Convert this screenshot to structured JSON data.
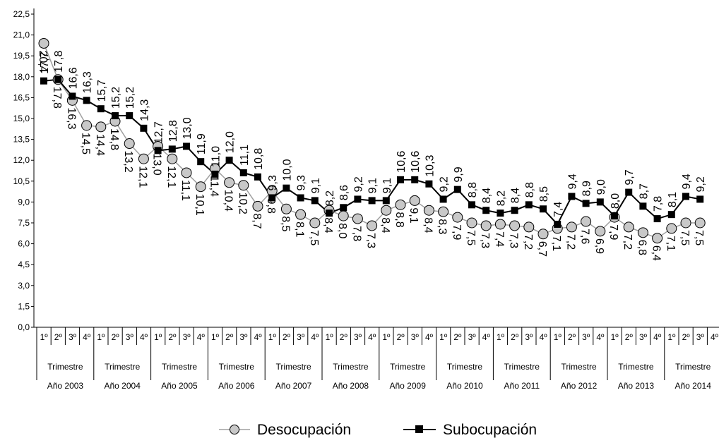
{
  "chart_data": {
    "type": "line",
    "title": "",
    "xlabel": "",
    "ylabel": "",
    "ylim": [
      0,
      22.5
    ],
    "y_ticks": [
      "0,0",
      "1,5",
      "3,0",
      "4,5",
      "6,0",
      "7,5",
      "9,0",
      "10,5",
      "12,0",
      "13,5",
      "15,0",
      "16,5",
      "18,0",
      "19,5",
      "21,0",
      "22,5"
    ],
    "grid": false,
    "legend_position": "bottom",
    "quarters": [
      "1º",
      "2º",
      "3º",
      "4º"
    ],
    "period_label": "Trimestre",
    "years": [
      "Año  2003",
      "Año 2004",
      "Año 2005",
      "Año 2006",
      "Año 2007",
      "Año 2008",
      "Año 2009",
      "Año 2010",
      "Año   2011",
      "Año   2012",
      "Año   2013",
      "Año  2014"
    ],
    "series": [
      {
        "name": "Desocupación",
        "color": "#a0a0a0",
        "marker": "circle",
        "marker_fill": "#c8c8c8",
        "values": [
          20.4,
          17.8,
          16.3,
          14.5,
          14.4,
          14.8,
          13.2,
          12.1,
          13.0,
          12.1,
          11.1,
          10.1,
          11.4,
          10.4,
          10.2,
          8.7,
          9.8,
          8.5,
          8.1,
          7.5,
          8.4,
          8.0,
          7.8,
          7.3,
          8.4,
          8.8,
          9.1,
          8.4,
          8.3,
          7.9,
          7.5,
          7.3,
          7.4,
          7.3,
          7.2,
          6.7,
          7.1,
          7.2,
          7.6,
          6.9,
          7.9,
          7.2,
          6.8,
          6.4,
          7.1,
          7.5,
          7.5
        ],
        "labels": [
          "20,4",
          "17,8",
          "16,3",
          "14,5",
          "14,4",
          "14,8",
          "13,2",
          "12,1",
          "13,0",
          "12,1",
          "11,1",
          "10,1",
          "11,4",
          "10,4",
          "10,2",
          "8,7",
          "9,8",
          "8,5",
          "8,1",
          "7,5",
          "8,4",
          "8,0",
          "7,8",
          "7,3",
          "8,4",
          "8,8",
          "9,1",
          "8,4",
          "8,3",
          "7,9",
          "7,5",
          "7,3",
          "7,4",
          "7,3",
          "7,2",
          "6,7",
          "7,1",
          "7,2",
          "7,6",
          "6,9",
          "7,9",
          "7,2",
          "6,8",
          "6,4",
          "7,1",
          "7,5",
          "7,5"
        ]
      },
      {
        "name": "Subocupación",
        "color": "#000000",
        "marker": "square",
        "marker_fill": "#000000",
        "values": [
          17.7,
          17.8,
          16.6,
          16.3,
          15.7,
          15.2,
          15.2,
          14.3,
          12.7,
          12.8,
          13.0,
          11.9,
          11.0,
          12.0,
          11.1,
          10.8,
          9.3,
          10.0,
          9.3,
          9.1,
          8.2,
          8.6,
          9.2,
          9.1,
          9.1,
          10.6,
          10.6,
          10.3,
          9.2,
          9.9,
          8.8,
          8.4,
          8.2,
          8.4,
          8.8,
          8.5,
          7.4,
          9.4,
          8.9,
          9.0,
          8.0,
          9.7,
          8.7,
          7.8,
          8.1,
          9.4,
          9.2
        ],
        "labels": [
          "17,7",
          "17,8",
          "16,6",
          "16,3",
          "15,7",
          "15,2",
          "15,2",
          "14,3",
          "12,7",
          "12,8",
          "13,0",
          "11,9",
          "11,0",
          "12,0",
          "11,1",
          "10,8",
          "9,3",
          "10,0",
          "9,3",
          "9,1",
          "8,2",
          "8,6",
          "9,2",
          "9,1",
          "9,1",
          "10,6",
          "10,6",
          "10,3",
          "9,2",
          "9,9",
          "8,8",
          "8,4",
          "8,2",
          "8,4",
          "8,8",
          "8,5",
          "7,4",
          "9,4",
          "8,9",
          "9,0",
          "8,0",
          "9,7",
          "8,7",
          "7,8",
          "8,1",
          "9,4",
          "9,2"
        ]
      }
    ]
  }
}
